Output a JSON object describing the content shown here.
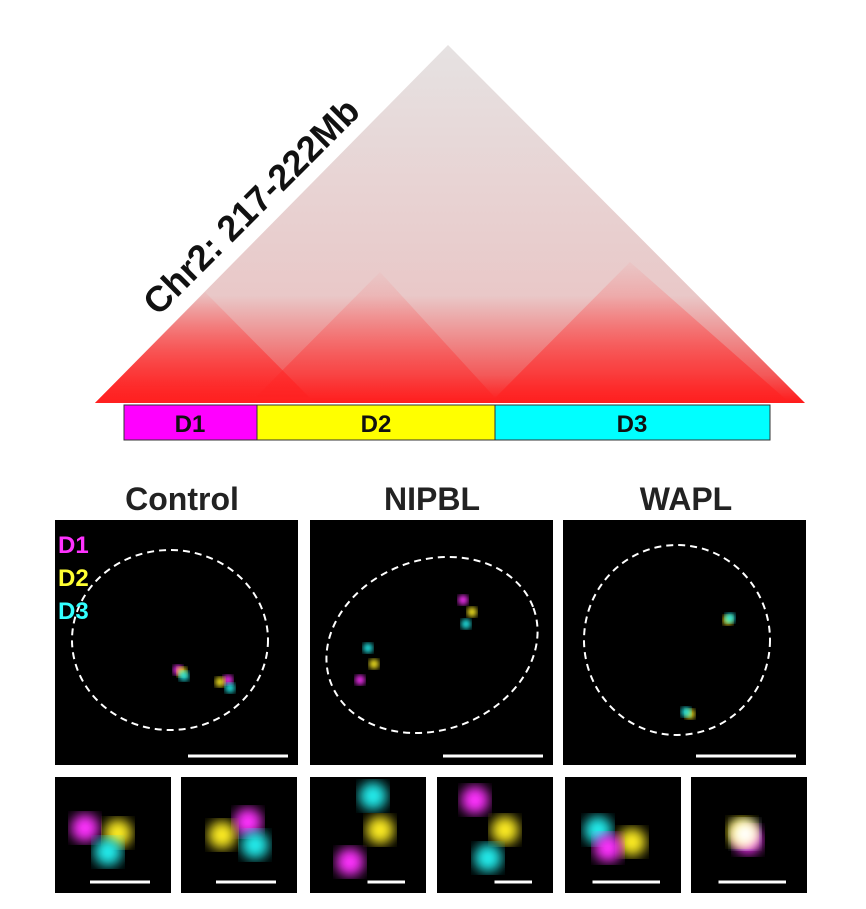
{
  "figure": {
    "title": "Chr2: 217-222Mb",
    "domains": [
      "D1",
      "D2",
      "D3"
    ],
    "conditions": [
      "Control",
      "NIPBL",
      "WAPL"
    ],
    "legend": [
      "D1",
      "D2",
      "D3"
    ]
  }
}
